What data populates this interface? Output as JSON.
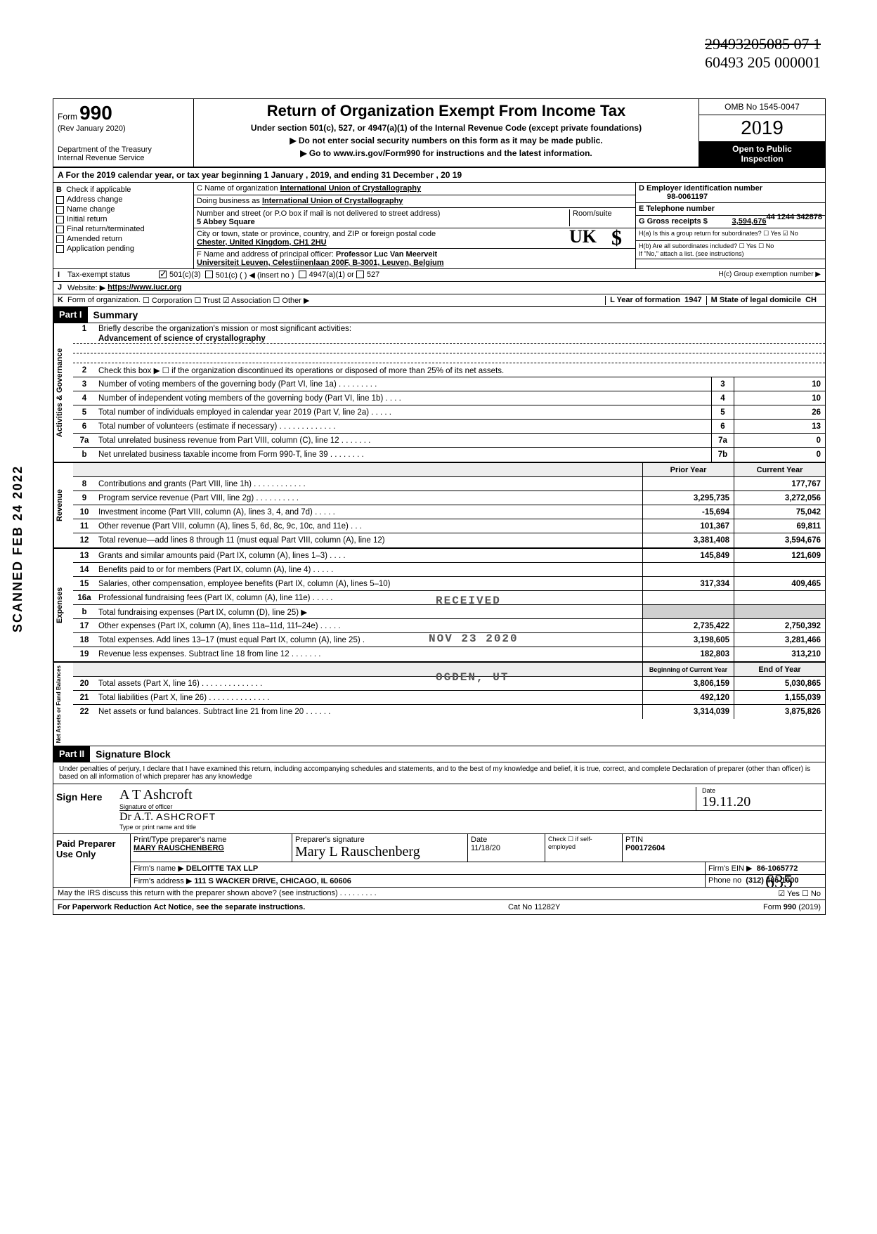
{
  "handwritten": {
    "line1": "29493205085 07 1",
    "line2": "60493 205 000001"
  },
  "scanned_stamp": "SCANNED FEB 24 2022",
  "header": {
    "form_word": "Form",
    "form_num": "990",
    "rev": "(Rev January 2020)",
    "dept": "Department of the Treasury",
    "irs": "Internal Revenue Service",
    "title": "Return of Organization Exempt From Income Tax",
    "sub1": "Under section 501(c), 527, or 4947(a)(1) of the Internal Revenue Code (except private foundations)",
    "sub2": "▶ Do not enter social security numbers on this form as it may be made public.",
    "sub3": "▶ Go to www.irs.gov/Form990 for instructions and the latest information.",
    "omb": "OMB No 1545-0047",
    "year": "2019",
    "open1": "Open to Public",
    "open2": "Inspection"
  },
  "row_a": "A   For the 2019 calendar year, or tax year beginning          1 January       , 2019, and ending          31 December       , 20  19",
  "section_b": {
    "b_label": "B",
    "b_text": "Check if applicable",
    "checks": [
      "Address change",
      "Name change",
      "Initial return",
      "Final return/terminated",
      "Amended return",
      "Application pending"
    ],
    "c_name_label": "C Name of organization",
    "c_name": "International Union of Crystallography",
    "dba_label": "Doing business as",
    "dba": "International Union of Crystallography",
    "street_label": "Number and street (or P.O  box if mail is not delivered to street address)",
    "street": "5 Abbey Square",
    "room_label": "Room/suite",
    "city_label": "City or town, state or province, country, and ZIP or foreign postal code",
    "city": "Chester, United Kingdom, CH1 2HU",
    "f_label": "F Name and address of principal officer:",
    "f_name": "Professor Luc Van Meerveit",
    "f_addr": "Universiteit Leuven, Celestiinenlaan 200F, B-3001, Leuven, Belgium",
    "d_label": "D Employer identification number",
    "d_val": "98-0061197",
    "e_label": "E Telephone number",
    "e_val": "44 1244 342878",
    "g_label": "G Gross receipts $",
    "g_val": "3,594,676",
    "ha": "H(a) Is this a group return for subordinates? ☐ Yes ☑ No",
    "hb": "H(b) Are all subordinates included? ☐ Yes ☐ No",
    "hb2": "If \"No,\" attach a list. (see instructions)",
    "hc": "H(c) Group exemption number ▶"
  },
  "row_i": {
    "label": "I",
    "text": "Tax-exempt status",
    "opt1": "501(c)(3)",
    "opt2": "501(c) (      ) ◀ (insert no )",
    "opt3": "4947(a)(1) or",
    "opt4": "527"
  },
  "row_j": {
    "label": "J",
    "text": "Website: ▶",
    "val": "https://www.iucr.org"
  },
  "row_k": {
    "label": "K",
    "text": "Form of organization.",
    "opts": "☐ Corporation ☐ Trust ☑ Association ☐ Other ▶",
    "l": "L Year of formation",
    "l_val": "1947",
    "m": "M State of legal domicile",
    "m_val": "CH"
  },
  "part1": {
    "hdr": "Part I",
    "title": "Summary",
    "gov_label": "Activities & Governance",
    "rev_label": "Revenue",
    "exp_label": "Expenses",
    "net_label": "Net Assets or\nFund Balances",
    "line1_desc": "Briefly describe the organization's mission or most significant activities:",
    "line1_val": "Advancement of science of crystallography",
    "line2": "Check this box ▶ ☐ if the organization discontinued its operations or disposed of more than 25% of its net assets.",
    "lines_gov": [
      {
        "n": "3",
        "d": "Number of voting members of the governing body (Part VI, line 1a) .   .   .   .   .   .   .   .   .",
        "b": "3",
        "v": "10"
      },
      {
        "n": "4",
        "d": "Number of independent voting members of the governing body (Part VI, line 1b)   .   .   .   .",
        "b": "4",
        "v": "10"
      },
      {
        "n": "5",
        "d": "Total number of individuals employed in calendar year 2019 (Part V, line 2a)   .   .   .   .   .",
        "b": "5",
        "v": "26"
      },
      {
        "n": "6",
        "d": "Total number of volunteers (estimate if necessary)   .   .   .   .   .   .   .   .   .   .   .   .   .",
        "b": "6",
        "v": "13"
      },
      {
        "n": "7a",
        "d": "Total unrelated business revenue from Part VIII, column (C), line 12    .   .   .   .   .   .   .",
        "b": "7a",
        "v": "0"
      },
      {
        "n": "b",
        "d": "Net unrelated business taxable income from Form 990-T, line 39    .   .   .   .   .   .   .   .",
        "b": "7b",
        "v": "0"
      }
    ],
    "col_prior": "Prior Year",
    "col_curr": "Current Year",
    "lines_rev": [
      {
        "n": "8",
        "d": "Contributions and grants (Part VIII, line 1h) .   .   .   .   .   .   .   .   .   .   .   .",
        "p": "",
        "c": "177,767"
      },
      {
        "n": "9",
        "d": "Program service revenue (Part VIII, line 2g)     .   .   .   .   .   .   .   .   .   .",
        "p": "3,295,735",
        "c": "3,272,056"
      },
      {
        "n": "10",
        "d": "Investment income (Part VIII, column (A), lines 3, 4, and 7d)   .   .   .   .   .",
        "p": "-15,694",
        "c": "75,042"
      },
      {
        "n": "11",
        "d": "Other revenue (Part VIII, column (A), lines 5, 6d, 8c, 9c, 10c, and 11e)  .   .   .",
        "p": "101,367",
        "c": "69,811"
      },
      {
        "n": "12",
        "d": "Total revenue—add lines 8 through 11 (must equal Part VIII, column (A), line 12)",
        "p": "3,381,408",
        "c": "3,594,676"
      }
    ],
    "lines_exp": [
      {
        "n": "13",
        "d": "Grants and similar amounts paid (Part IX, column (A), lines 1–3)  .   .   .   .",
        "p": "145,849",
        "c": "121,609"
      },
      {
        "n": "14",
        "d": "Benefits paid to or for members (Part IX, column (A), line 4)   .   .   .   .   .",
        "p": "",
        "c": ""
      },
      {
        "n": "15",
        "d": "Salaries, other compensation, employee benefits (Part IX, column (A), lines 5–10)",
        "p": "317,334",
        "c": "409,465"
      },
      {
        "n": "16a",
        "d": "Professional fundraising fees (Part IX, column (A), line 11e)   .   .   .   .   .",
        "p": "",
        "c": ""
      },
      {
        "n": "b",
        "d": "Total fundraising expenses (Part IX, column (D), line 25) ▶",
        "p": "",
        "c": "",
        "gray": true
      },
      {
        "n": "17",
        "d": "Other expenses (Part IX, column (A), lines 11a–11d, 11f–24e)   .   .   .   .   .",
        "p": "2,735,422",
        "c": "2,750,392"
      },
      {
        "n": "18",
        "d": "Total expenses. Add lines 13–17 (must equal Part IX, column (A), line 25)   .",
        "p": "3,198,605",
        "c": "3,281,466"
      },
      {
        "n": "19",
        "d": "Revenue less expenses. Subtract line 18 from line 12   .   .   .   .   .   .   .",
        "p": "182,803",
        "c": "313,210"
      }
    ],
    "col_boy": "Beginning of Current Year",
    "col_eoy": "End of Year",
    "lines_net": [
      {
        "n": "20",
        "d": "Total assets (Part X, line 16)     .   .   .   .   .   .   .   .   .   .   .   .   .   .",
        "p": "3,806,159",
        "c": "5,030,865"
      },
      {
        "n": "21",
        "d": "Total liabilities (Part X, line 26) .   .   .   .   .   .   .   .   .   .   .   .   .   .",
        "p": "492,120",
        "c": "1,155,039"
      },
      {
        "n": "22",
        "d": "Net assets or fund balances. Subtract line 21 from line 20   .   .   .   .   .   .",
        "p": "3,314,039",
        "c": "3,875,826"
      }
    ]
  },
  "part2": {
    "hdr": "Part II",
    "title": "Signature Block",
    "decl": "Under penalties of perjury, I declare that I have examined this return, including accompanying schedules and statements, and to the best of my knowledge  and belief, it is true, correct, and complete  Declaration of preparer (other than officer) is based on all information of which preparer has any knowledge",
    "sign_here": "Sign Here",
    "sig_officer": "Signature of officer",
    "sig_name": "Dr A.T. ASHCROFT",
    "sig_type": "Type or print name and title",
    "date_label": "Date",
    "date_val": "19.11.20",
    "paid": "Paid Preparer Use Only",
    "prep_name_label": "Print/Type preparer's name",
    "prep_name": "MARY RAUSCHENBERG",
    "prep_sig_label": "Preparer's signature",
    "prep_sig": "Mary L Rauschenberg",
    "prep_date_label": "Date",
    "prep_date": "11/18/20",
    "check_if": "Check ☐ if self-employed",
    "ptin_label": "PTIN",
    "ptin": "P00172604",
    "firm_name_label": "Firm's name    ▶",
    "firm_name": "DELOITTE TAX LLP",
    "firm_ein_label": "Firm's EIN ▶",
    "firm_ein": "86-1065772",
    "firm_addr_label": "Firm's address ▶",
    "firm_addr": "111 S WACKER DRIVE, CHICAGO, IL 60606",
    "phone_label": "Phone no",
    "phone": "(312) 486-1000",
    "discuss": "May the IRS discuss this return with the preparer shown above? (see instructions)    .   .   .   .   .   .   .   .   .",
    "discuss_yn": "☑ Yes   ☐ No"
  },
  "footer": {
    "left": "For Paperwork Reduction Act Notice, see the separate instructions.",
    "mid": "Cat  No  11282Y",
    "right": "Form 990 (2019)"
  },
  "stamps": {
    "received": "RECEIVED",
    "date": "NOV 23 2020",
    "ogden": "OGDEN, UT",
    "uk": "UK",
    "dollar": "$"
  },
  "bottom_hand": "635"
}
